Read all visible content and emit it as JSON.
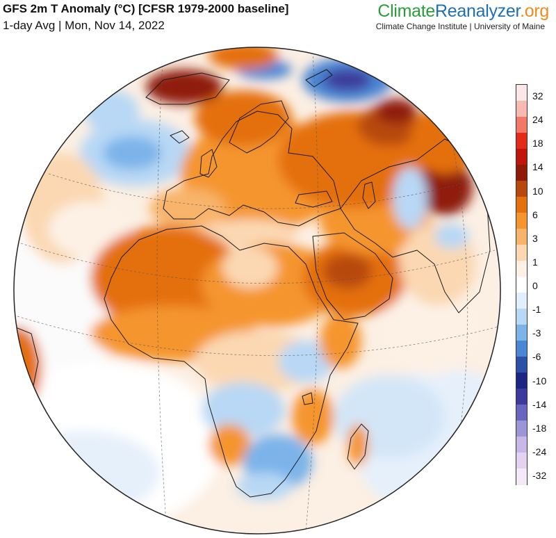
{
  "header": {
    "title": "GFS 2m T Anomaly (°C) [CFSR 1979-2000 baseline]",
    "subtitle": "1-day Avg | Mon, Nov 14, 2022"
  },
  "brand": {
    "part1": "Climate",
    "part2": "Reanalyzer",
    "part3": ".org",
    "affiliation": "Climate Change Institute | University of Maine"
  },
  "colorbar": {
    "labels": [
      "32",
      "24",
      "18",
      "14",
      "10",
      "6",
      "3",
      "1",
      "0",
      "-1",
      "-3",
      "-6",
      "-10",
      "-14",
      "-18",
      "-24",
      "-32"
    ],
    "colors": [
      "#fbe7e7",
      "#f7b9b0",
      "#f27868",
      "#e52a18",
      "#c0150c",
      "#8f1a0a",
      "#b8480e",
      "#e4700e",
      "#f5952d",
      "#f8b46a",
      "#fbd8b2",
      "#fdf1e6",
      "#ffffff",
      "#e1eefb",
      "#b8d8f5",
      "#7cb4ea",
      "#4b86d4",
      "#2c4fa8",
      "#1d2582",
      "#3c3a9c",
      "#6a66c0",
      "#9c95d8",
      "#c8b8e8",
      "#e3d2f0",
      "#f5e8f7"
    ]
  },
  "map": {
    "projection": "orthographic",
    "region_labels": []
  }
}
